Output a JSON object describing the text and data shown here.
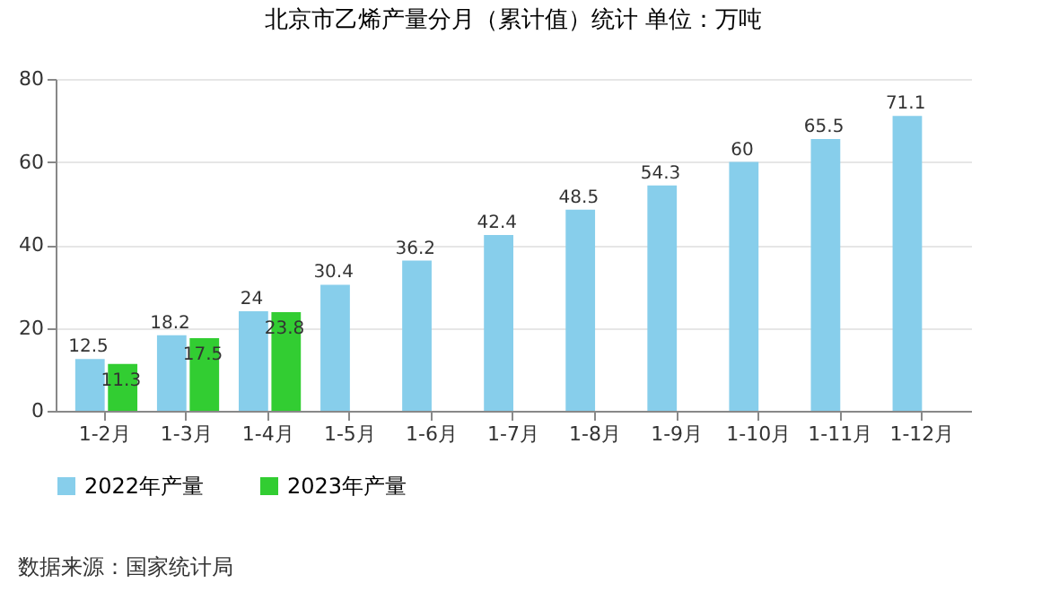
{
  "chart_data": {
    "type": "bar",
    "title": "北京市乙烯产量分月（累计值）统计 单位：万吨",
    "categories": [
      "1-2月",
      "1-3月",
      "1-4月",
      "1-5月",
      "1-6月",
      "1-7月",
      "1-8月",
      "1-9月",
      "1-10月",
      "1-11月",
      "1-12月"
    ],
    "series": [
      {
        "name": "2022年产量",
        "color": "#87ceeb",
        "values": [
          12.5,
          18.2,
          24,
          30.4,
          36.2,
          42.4,
          48.5,
          54.3,
          60,
          65.5,
          71.1
        ]
      },
      {
        "name": "2023年产量",
        "color": "#32cd32",
        "values": [
          11.3,
          17.5,
          23.8,
          null,
          null,
          null,
          null,
          null,
          null,
          null,
          null
        ]
      }
    ],
    "ylim": [
      0,
      80
    ],
    "yticks": [
      0,
      20,
      40,
      60,
      80
    ],
    "grid": "y",
    "legend": "bottom",
    "data_labels": true,
    "annotations": [
      "数据来源：国家统计局"
    ]
  }
}
